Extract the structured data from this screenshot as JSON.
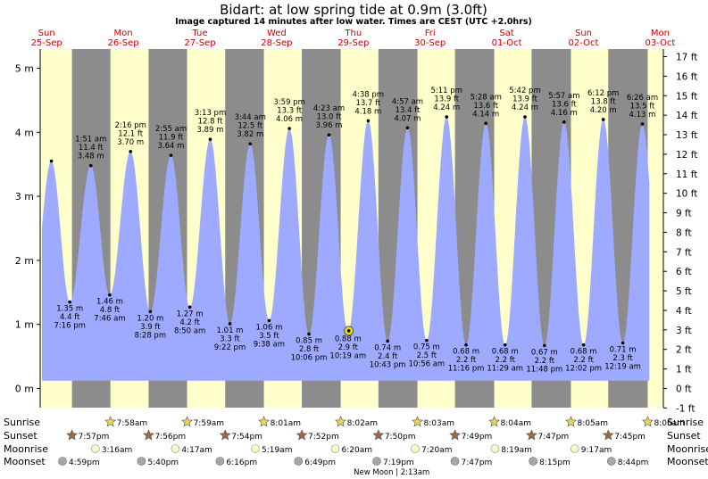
{
  "chart_data": {
    "type": "area",
    "title": "Bidart: at low  spring tide at 0.9m (3.0ft)",
    "subtitle": "Image captured 14 minutes after low water. Times are CEST (UTC +2.0hrs)",
    "y_left_unit": "m",
    "y_left_ticks": [
      "0 m",
      "1 m",
      "2 m",
      "3 m",
      "4 m",
      "5 m"
    ],
    "y_right_ticks": [
      "-1 ft",
      "0 ft",
      "1 ft",
      "2 ft",
      "3 ft",
      "4 ft",
      "5 ft",
      "6 ft",
      "7 ft",
      "8 ft",
      "9 ft",
      "10 ft",
      "11 ft",
      "12 ft",
      "13 ft",
      "14 ft",
      "15 ft",
      "16 ft",
      "17 ft"
    ],
    "ylim_m": [
      -0.3,
      5.3
    ],
    "days": [
      {
        "name": "Sun",
        "date": "25-Sep"
      },
      {
        "name": "Mon",
        "date": "26-Sep"
      },
      {
        "name": "Tue",
        "date": "27-Sep"
      },
      {
        "name": "Wed",
        "date": "28-Sep"
      },
      {
        "name": "Thu",
        "date": "29-Sep"
      },
      {
        "name": "Fri",
        "date": "30-Sep"
      },
      {
        "name": "Sat",
        "date": "01-Oct"
      },
      {
        "name": "Sun",
        "date": "02-Oct"
      },
      {
        "name": "Mon",
        "date": "03-Oct"
      }
    ],
    "start_hour": 10,
    "end_hour": 205,
    "night_hours": [
      [
        19.95,
        31.97
      ],
      [
        43.93,
        55.98
      ],
      [
        67.9,
        80.0
      ],
      [
        91.87,
        104.03
      ],
      [
        115.83,
        128.05
      ],
      [
        139.8,
        152.07
      ],
      [
        163.78,
        176.08
      ],
      [
        187.75,
        200.1
      ]
    ],
    "tides": [
      {
        "type": "high",
        "hour": 13.5,
        "m": 3.55,
        "labels": []
      },
      {
        "type": "low",
        "hour": 19.27,
        "m": 1.35,
        "labels": [
          "1.35 m",
          "4.4 ft",
          "7:16 pm"
        ]
      },
      {
        "type": "high",
        "hour": 25.85,
        "m": 3.48,
        "labels": [
          "1:51 am",
          "11.4 ft",
          "3.48 m"
        ]
      },
      {
        "type": "low",
        "hour": 31.77,
        "m": 1.46,
        "labels": [
          "1.46 m",
          "4.8 ft",
          "7:46 am"
        ]
      },
      {
        "type": "high",
        "hour": 38.27,
        "m": 3.7,
        "labels": [
          "2:16 pm",
          "12.1 ft",
          "3.70 m"
        ]
      },
      {
        "type": "low",
        "hour": 44.47,
        "m": 1.2,
        "labels": [
          "1.20 m",
          "3.9 ft",
          "8:28 pm"
        ]
      },
      {
        "type": "high",
        "hour": 50.92,
        "m": 3.64,
        "labels": [
          "2:55 am",
          "11.9 ft",
          "3.64 m"
        ]
      },
      {
        "type": "low",
        "hour": 56.83,
        "m": 1.27,
        "labels": [
          "1.27 m",
          "4.2 ft",
          "8:50 am"
        ]
      },
      {
        "type": "high",
        "hour": 63.22,
        "m": 3.89,
        "labels": [
          "3:13 pm",
          "12.8 ft",
          "3.89 m"
        ]
      },
      {
        "type": "low",
        "hour": 69.37,
        "m": 1.01,
        "labels": [
          "1.01 m",
          "3.3 ft",
          "9:22 pm"
        ]
      },
      {
        "type": "high",
        "hour": 75.73,
        "m": 3.82,
        "labels": [
          "3:44 am",
          "12.5 ft",
          "3.82 m"
        ]
      },
      {
        "type": "low",
        "hour": 81.63,
        "m": 1.06,
        "labels": [
          "1.06 m",
          "3.5 ft",
          "9:38 am"
        ]
      },
      {
        "type": "high",
        "hour": 87.98,
        "m": 4.06,
        "labels": [
          "3:59 pm",
          "13.3 ft",
          "4.06 m"
        ]
      },
      {
        "type": "low",
        "hour": 94.1,
        "m": 0.85,
        "labels": [
          "0.85 m",
          "2.8 ft",
          "10:06 pm"
        ]
      },
      {
        "type": "high",
        "hour": 100.38,
        "m": 3.96,
        "labels": [
          "4:23 am",
          "13.0 ft",
          "3.96 m"
        ]
      },
      {
        "type": "low",
        "hour": 106.32,
        "m": 0.88,
        "labels": [
          "0.88 m",
          "2.9 ft",
          "10:19 am"
        ]
      },
      {
        "type": "high",
        "hour": 112.63,
        "m": 4.18,
        "labels": [
          "4:38 pm",
          "13.7 ft",
          "4.18 m"
        ]
      },
      {
        "type": "low",
        "hour": 118.72,
        "m": 0.74,
        "labels": [
          "0.74 m",
          "2.4 ft",
          "10:43 pm"
        ]
      },
      {
        "type": "high",
        "hour": 124.95,
        "m": 4.07,
        "labels": [
          "4:57 am",
          "13.4 ft",
          "4.07 m"
        ]
      },
      {
        "type": "low",
        "hour": 130.93,
        "m": 0.75,
        "labels": [
          "0.75 m",
          "2.5 ft",
          "10:56 am"
        ]
      },
      {
        "type": "high",
        "hour": 137.18,
        "m": 4.24,
        "labels": [
          "5:11 pm",
          "13.9 ft",
          "4.24 m"
        ]
      },
      {
        "type": "low",
        "hour": 143.27,
        "m": 0.68,
        "labels": [
          "0.68 m",
          "2.2 ft",
          "11:16 pm"
        ]
      },
      {
        "type": "high",
        "hour": 149.47,
        "m": 4.14,
        "labels": [
          "5:28 am",
          "13.6 ft",
          "4.14 m"
        ]
      },
      {
        "type": "low",
        "hour": 155.48,
        "m": 0.68,
        "labels": [
          "0.68 m",
          "2.2 ft",
          "11:29 am"
        ]
      },
      {
        "type": "high",
        "hour": 161.7,
        "m": 4.24,
        "labels": [
          "5:42 pm",
          "13.9 ft",
          "4.24 m"
        ]
      },
      {
        "type": "low",
        "hour": 167.8,
        "m": 0.67,
        "labels": [
          "0.67 m",
          "2.2 ft",
          "11:48 pm"
        ]
      },
      {
        "type": "high",
        "hour": 173.95,
        "m": 4.16,
        "labels": [
          "5:57 am",
          "13.6 ft",
          "4.16 m"
        ]
      },
      {
        "type": "low",
        "hour": 180.03,
        "m": 0.68,
        "labels": [
          "0.68 m",
          "2.2 ft",
          "12:02 pm"
        ]
      },
      {
        "type": "high",
        "hour": 186.2,
        "m": 4.2,
        "labels": [
          "6:12 pm",
          "13.8 ft",
          "4.20 m"
        ]
      },
      {
        "type": "low",
        "hour": 192.32,
        "m": 0.71,
        "labels": [
          "0.71 m",
          "2.3 ft",
          "12:19 am"
        ]
      },
      {
        "type": "high",
        "hour": 198.43,
        "m": 4.13,
        "labels": [
          "6:26 am",
          "13.5 ft",
          "4.13 m"
        ]
      }
    ],
    "current": {
      "hour": 106.55,
      "m": 0.9
    },
    "rows": {
      "sunrise": {
        "label": "Sunrise",
        "items": [
          {
            "hour": 31.97,
            "text": "7:58am"
          },
          {
            "hour": 55.98,
            "text": "7:59am"
          },
          {
            "hour": 80.0,
            "text": "8:01am"
          },
          {
            "hour": 104.03,
            "text": "8:02am"
          },
          {
            "hour": 128.05,
            "text": "8:03am"
          },
          {
            "hour": 152.07,
            "text": "8:04am"
          },
          {
            "hour": 176.08,
            "text": "8:05am"
          },
          {
            "hour": 200.1,
            "text": "8:06am"
          }
        ]
      },
      "sunset": {
        "label": "Sunset",
        "items": [
          {
            "hour": 19.95,
            "text": "7:57pm"
          },
          {
            "hour": 43.93,
            "text": "7:56pm"
          },
          {
            "hour": 67.9,
            "text": "7:54pm"
          },
          {
            "hour": 91.87,
            "text": "7:52pm"
          },
          {
            "hour": 115.83,
            "text": "7:50pm"
          },
          {
            "hour": 139.8,
            "text": "7:49pm"
          },
          {
            "hour": 163.78,
            "text": "7:47pm"
          },
          {
            "hour": 187.75,
            "text": "7:45pm"
          }
        ]
      },
      "moonrise": {
        "label": "Moonrise",
        "items": [
          {
            "hour": 27.27,
            "text": "3:16am"
          },
          {
            "hour": 52.28,
            "text": "4:17am"
          },
          {
            "hour": 77.32,
            "text": "5:19am"
          },
          {
            "hour": 102.33,
            "text": "6:20am"
          },
          {
            "hour": 127.33,
            "text": "7:20am"
          },
          {
            "hour": 152.32,
            "text": "8:19am"
          },
          {
            "hour": 177.28,
            "text": "9:17am"
          }
        ]
      },
      "moonset": {
        "label": "Moonset",
        "items": [
          {
            "hour": 16.98,
            "text": "4:59pm"
          },
          {
            "hour": 41.67,
            "text": "5:40pm"
          },
          {
            "hour": 66.27,
            "text": "6:16pm"
          },
          {
            "hour": 90.82,
            "text": "6:49pm"
          },
          {
            "hour": 115.32,
            "text": "7:19pm"
          },
          {
            "hour": 139.78,
            "text": "7:47pm"
          },
          {
            "hour": 164.25,
            "text": "8:15pm"
          },
          {
            "hour": 188.73,
            "text": "8:44pm"
          }
        ]
      }
    },
    "new_moon_note": "New Moon | 2:13am",
    "colors": {
      "day": "#ffffcc",
      "night": "#8c8c8c",
      "water": "#9eaaff",
      "date_red": "#cc0000",
      "sun_star": "#e8d84a",
      "sunset_star": "#a06840",
      "moonrise": "#fbf6c8",
      "moonset": "#a8a8a0"
    }
  }
}
